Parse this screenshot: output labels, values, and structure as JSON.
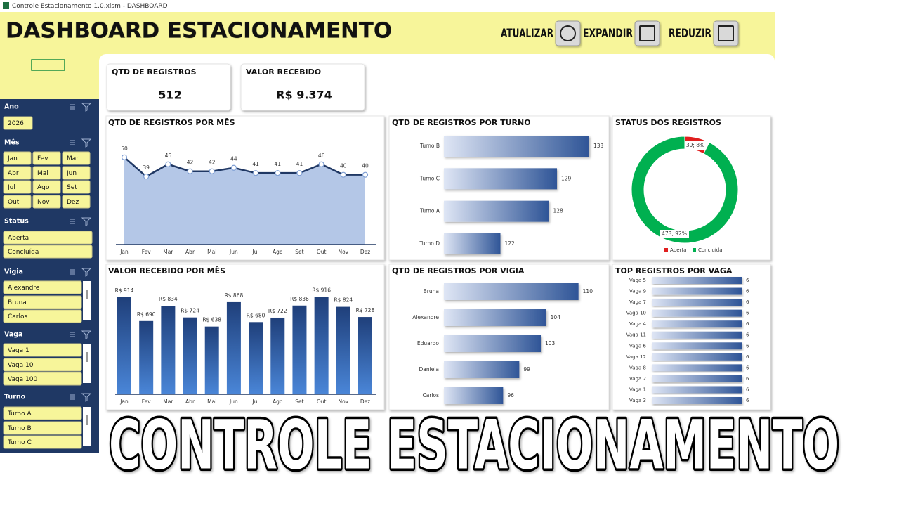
{
  "window_title": "Controle Estacionamento 1.0.xlsm - DASHBOARD",
  "header": {
    "title": "DASHBOARD ESTACIONAMENTO",
    "buttons": [
      "ATUALIZAR",
      "EXPANDIR",
      "REDUZIR"
    ]
  },
  "kpis": [
    {
      "label": "QTD DE REGISTROS",
      "value": "512"
    },
    {
      "label": "VALOR RECEBIDO",
      "value": "R$ 9.374"
    }
  ],
  "slicers": [
    {
      "title": "Ano",
      "items": [
        "2026"
      ]
    },
    {
      "title": "Mês",
      "items": [
        "Jan",
        "Fev",
        "Mar",
        "Abr",
        "Mai",
        "Jun",
        "Jul",
        "Ago",
        "Set",
        "Out",
        "Nov",
        "Dez"
      ]
    },
    {
      "title": "Status",
      "items": [
        "Aberta",
        "Concluída"
      ]
    },
    {
      "title": "Vigia",
      "items": [
        "Alexandre",
        "Bruna",
        "Carlos"
      ]
    },
    {
      "title": "Vaga",
      "items": [
        "Vaga 1",
        "Vaga 10",
        "Vaga 100"
      ]
    },
    {
      "title": "Turno",
      "items": [
        "Turno A",
        "Turno B",
        "Turno C"
      ]
    }
  ],
  "overlay_caption": "CONTROLE ESTACIONAMENTO",
  "chart_data": [
    {
      "type": "area",
      "title": "QTD DE REGISTROS POR MÊS",
      "categories": [
        "Jan",
        "Fev",
        "Mar",
        "Abr",
        "Mai",
        "Jun",
        "Jul",
        "Ago",
        "Set",
        "Out",
        "Nov",
        "Dez"
      ],
      "values": [
        50,
        39,
        46,
        42,
        42,
        44,
        41,
        41,
        41,
        46,
        40,
        40
      ],
      "ylim": [
        0,
        60
      ],
      "color": "#b4c7e7",
      "line_color": "#203864"
    },
    {
      "type": "bar",
      "orientation": "horizontal",
      "title": "QTD DE REGISTROS POR TURNO",
      "categories": [
        "Turno B",
        "Turno C",
        "Turno A",
        "Turno D"
      ],
      "values": [
        133,
        129,
        128,
        122
      ],
      "xlim": [
        115,
        135
      ],
      "color": "#2f5597"
    },
    {
      "type": "pie",
      "donut": true,
      "title": "STATUS DOS REGISTROS",
      "categories": [
        "Aberta",
        "Concluída"
      ],
      "values": [
        39,
        473
      ],
      "value_labels": [
        "39; 8%",
        "473; 92%"
      ],
      "colors": [
        "#e01f1f",
        "#00b050"
      ]
    },
    {
      "type": "bar",
      "orientation": "vertical",
      "title": "VALOR RECEBIDO POR MÊS",
      "categories": [
        "Jan",
        "Fev",
        "Mar",
        "Abr",
        "Mai",
        "Jun",
        "Jul",
        "Ago",
        "Set",
        "Out",
        "Nov",
        "Dez"
      ],
      "values": [
        914,
        690,
        834,
        724,
        638,
        868,
        680,
        722,
        836,
        916,
        824,
        728
      ],
      "value_labels": [
        "R$ 914",
        "R$ 690",
        "R$ 834",
        "R$ 724",
        "R$ 638",
        "R$ 868",
        "R$ 680",
        "R$ 722",
        "R$ 836",
        "R$ 916",
        "R$ 824",
        "R$ 728"
      ],
      "ylim": [
        0,
        1000
      ],
      "color": "#1f3f7a"
    },
    {
      "type": "bar",
      "orientation": "horizontal",
      "title": "QTD DE REGISTROS POR VIGIA",
      "categories": [
        "Bruna",
        "Alexandre",
        "Eduardo",
        "Daniela",
        "Carlos"
      ],
      "values": [
        110,
        104,
        103,
        99,
        96
      ],
      "xlim": [
        85,
        115
      ],
      "color": "#2f5597"
    },
    {
      "type": "bar",
      "orientation": "horizontal",
      "title": "TOP REGISTROS POR VAGA",
      "categories": [
        "Vaga 5",
        "Vaga 9",
        "Vaga 7",
        "Vaga 10",
        "Vaga 4",
        "Vaga 11",
        "Vaga 6",
        "Vaga 12",
        "Vaga 8",
        "Vaga 2",
        "Vaga 1",
        "Vaga 3"
      ],
      "values": [
        6,
        6,
        6,
        6,
        6,
        6,
        6,
        6,
        6,
        6,
        6,
        6
      ],
      "xlim": [
        0,
        6
      ],
      "color": "#2f5597"
    }
  ]
}
